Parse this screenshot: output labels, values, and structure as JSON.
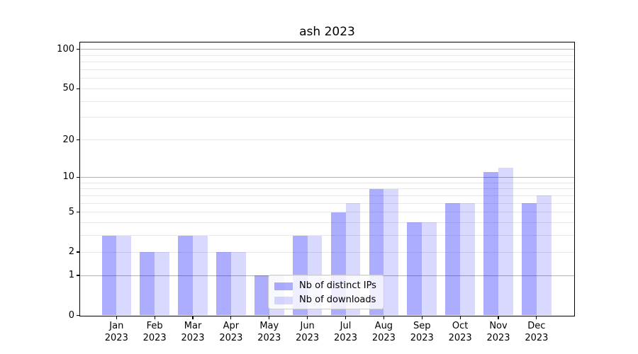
{
  "figure": {
    "title": "ash 2023",
    "background": "#ffffff"
  },
  "legend": {
    "items": [
      {
        "label": "Nb of distinct IPs",
        "color": "rgba(0,0,255,0.32)",
        "color_hex": "#aaaaff"
      },
      {
        "label": "Nb of downloads",
        "color": "rgba(0,0,255,0.15)",
        "color_hex": "#d9d9ff"
      }
    ]
  },
  "chart_data": {
    "type": "bar",
    "title": "ash 2023",
    "xlabel": "",
    "ylabel": "",
    "yscale": "log1p",
    "grid": true,
    "legend_position": "inside lower-center-left",
    "categories": [
      {
        "month": "Jan",
        "year": "2023"
      },
      {
        "month": "Feb",
        "year": "2023"
      },
      {
        "month": "Mar",
        "year": "2023"
      },
      {
        "month": "Apr",
        "year": "2023"
      },
      {
        "month": "May",
        "year": "2023"
      },
      {
        "month": "Jun",
        "year": "2023"
      },
      {
        "month": "Jul",
        "year": "2023"
      },
      {
        "month": "Aug",
        "year": "2023"
      },
      {
        "month": "Sep",
        "year": "2023"
      },
      {
        "month": "Oct",
        "year": "2023"
      },
      {
        "month": "Nov",
        "year": "2023"
      },
      {
        "month": "Dec",
        "year": "2023"
      }
    ],
    "series": [
      {
        "name": "Nb of distinct IPs",
        "color": "rgba(0,0,255,0.32)",
        "values": [
          3,
          2,
          3,
          2,
          1,
          3,
          5,
          8,
          4,
          6,
          11,
          6
        ]
      },
      {
        "name": "Nb of downloads",
        "color": "rgba(0,0,255,0.15)",
        "values": [
          3,
          2,
          3,
          2,
          1,
          3,
          6,
          8,
          4,
          6,
          12,
          7
        ]
      }
    ],
    "yticks": [
      0,
      1,
      2,
      5,
      10,
      20,
      50,
      100
    ],
    "ytick_labels": [
      "0",
      "1",
      "2",
      "5",
      "10",
      "20",
      "50",
      "100"
    ],
    "minor_gridlines": [
      3,
      4,
      6,
      7,
      8,
      9,
      30,
      40,
      60,
      70,
      80,
      90
    ],
    "ylim": [
      0,
      112
    ],
    "colors": {
      "decade_gridline": "#b2b2b2",
      "minor_gridline": "#e8e8e8",
      "spine": "#000000"
    }
  }
}
